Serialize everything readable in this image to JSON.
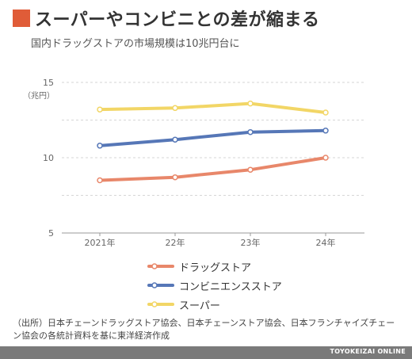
{
  "title": "スーパーやコンビニとの差が縮まる",
  "subtitle": "国内ドラッグストアの市場規模は10兆円台に",
  "title_mark_color": "#e05c38",
  "source": "（出所）日本チェーンドラッグストア協会、日本チェーンストア協会、日本フランチャイズチェーン協会の各統計資料を基に東洋経済作成",
  "brand": "TOYOKEIZAI ONLINE",
  "chart_data": {
    "type": "line",
    "title": "スーパーやコンビニとの差が縮まる",
    "subtitle": "国内ドラッグストアの市場規模は10兆円台に",
    "categories": [
      "2021年",
      "22年",
      "23年",
      "24年"
    ],
    "ylabel": "（兆円）",
    "ylim": [
      5,
      15
    ],
    "yticks": [
      5,
      10,
      15
    ],
    "grid": true,
    "legend_position": "bottom",
    "series": [
      {
        "name": "ドラッグストア",
        "color": "#e8876a",
        "values": [
          8.5,
          8.7,
          9.2,
          10.0
        ]
      },
      {
        "name": "コンビニエンスストア",
        "color": "#5677b7",
        "values": [
          10.8,
          11.2,
          11.7,
          11.8
        ]
      },
      {
        "name": "スーパー",
        "color": "#f2d666",
        "values": [
          13.2,
          13.3,
          13.6,
          13.0
        ]
      }
    ]
  }
}
